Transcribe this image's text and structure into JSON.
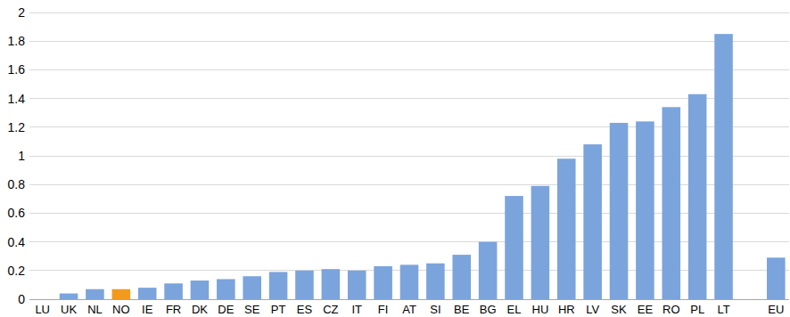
{
  "chart_data": {
    "type": "bar",
    "categories": [
      "LU",
      "UK",
      "NL",
      "NO",
      "IE",
      "FR",
      "DK",
      "DE",
      "SE",
      "PT",
      "ES",
      "CZ",
      "IT",
      "FI",
      "AT",
      "SI",
      "BE",
      "BG",
      "EL",
      "HU",
      "HR",
      "LV",
      "SK",
      "EE",
      "RO",
      "PL",
      "LT",
      null,
      "EU"
    ],
    "values": [
      0,
      0.04,
      0.07,
      0.07,
      0.08,
      0.11,
      0.13,
      0.14,
      0.16,
      0.19,
      0.2,
      0.21,
      0.2,
      0.23,
      0.24,
      0.25,
      0.31,
      0.4,
      0.72,
      0.79,
      0.98,
      1.08,
      1.23,
      1.24,
      1.34,
      1.43,
      1.85,
      null,
      0.29
    ],
    "colors": [
      "#7ba4dd",
      "#7ba4dd",
      "#7ba4dd",
      "#f39a1e",
      "#7ba4dd",
      "#7ba4dd",
      "#7ba4dd",
      "#7ba4dd",
      "#7ba4dd",
      "#7ba4dd",
      "#7ba4dd",
      "#7ba4dd",
      "#7ba4dd",
      "#7ba4dd",
      "#7ba4dd",
      "#7ba4dd",
      "#7ba4dd",
      "#7ba4dd",
      "#7ba4dd",
      "#7ba4dd",
      "#7ba4dd",
      "#7ba4dd",
      "#7ba4dd",
      "#7ba4dd",
      "#7ba4dd",
      "#7ba4dd",
      "#7ba4dd",
      "#7ba4dd",
      "#7ba4dd"
    ],
    "ylim": [
      0,
      2
    ],
    "yticks": [
      0,
      0.2,
      0.4,
      0.6,
      0.8,
      1,
      1.2,
      1.4,
      1.6,
      1.8,
      2
    ],
    "grid": true
  }
}
